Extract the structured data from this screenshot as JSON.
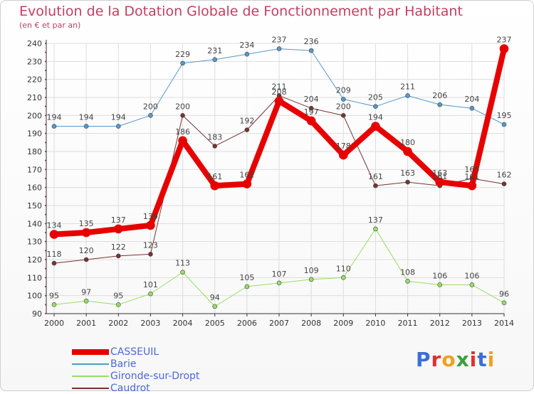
{
  "title": "Evolution de la Dotation Globale de Fonctionnement par Habitant",
  "subtitle": "(en € et par an)",
  "logo": {
    "text": "Proxiti",
    "colors": [
      "#3b6fd6",
      "#e03030",
      "#f0a020",
      "#3ba03b",
      "#e03030",
      "#3b6fd6",
      "#f0a020"
    ]
  },
  "chart_data": {
    "type": "line",
    "x": [
      "2000",
      "2001",
      "2002",
      "2003",
      "2004",
      "2005",
      "2006",
      "2007",
      "2008",
      "2009",
      "2010",
      "2011",
      "2012",
      "2013",
      "2014"
    ],
    "ylim": [
      90,
      240
    ],
    "yticks": [
      90,
      100,
      110,
      120,
      130,
      140,
      150,
      160,
      170,
      180,
      190,
      200,
      210,
      220,
      230,
      240
    ],
    "grid": true,
    "legend_position": "bottom-left",
    "series": [
      {
        "name": "CASSEUIL",
        "color": "#e60000",
        "width": 8,
        "values": [
          134,
          135,
          137,
          139,
          186,
          161,
          162,
          208,
          197,
          178,
          194,
          180,
          163,
          161,
          237
        ],
        "labels": [
          "134",
          "135",
          "137",
          "139",
          "186",
          "161",
          "162",
          "208",
          "197",
          "178",
          "194",
          "180",
          "163",
          "161",
          "237"
        ]
      },
      {
        "name": "Barie",
        "color": "#5599cc",
        "width": 1,
        "values": [
          194,
          194,
          194,
          200,
          229,
          231,
          234,
          237,
          236,
          209,
          205,
          211,
          206,
          204,
          195
        ],
        "labels": [
          "194",
          "194",
          "194",
          "200",
          "229",
          "231",
          "234",
          "237",
          "236",
          "209",
          "205",
          "211",
          "206",
          "204",
          "195"
        ]
      },
      {
        "name": "Gironde-sur-Dropt",
        "color": "#99dd66",
        "width": 1,
        "values": [
          95,
          97,
          95,
          101,
          113,
          94,
          105,
          107,
          109,
          110,
          137,
          108,
          106,
          106,
          96
        ],
        "labels": [
          "95",
          "97",
          "95",
          "101",
          "113",
          "94",
          "105",
          "107",
          "109",
          "110",
          "137",
          "108",
          "106",
          "106",
          "96"
        ]
      },
      {
        "name": "Caudrot",
        "color": "#773333",
        "width": 1,
        "values": [
          118,
          120,
          122,
          123,
          200,
          183,
          192,
          211,
          204,
          200,
          161,
          163,
          161,
          165,
          162
        ],
        "labels": [
          "118",
          "120",
          "122",
          "123",
          "200",
          "183",
          "192",
          "211",
          "204",
          "200",
          "161",
          "163",
          "161",
          "165",
          "162"
        ]
      }
    ]
  }
}
